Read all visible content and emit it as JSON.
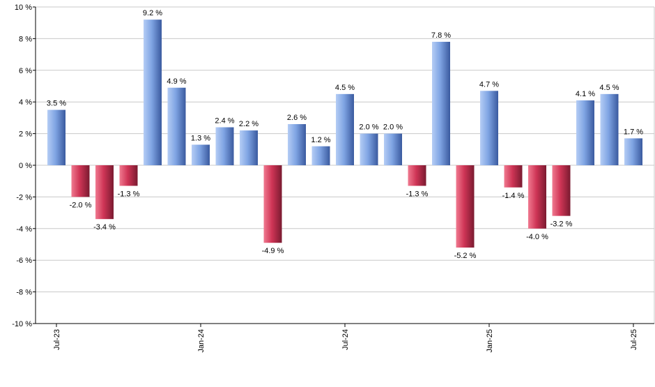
{
  "chart_data": {
    "type": "bar",
    "title": "",
    "xlabel": "",
    "ylabel": "",
    "categories": [
      "2023-07",
      "2023-08",
      "2023-09",
      "2023-10",
      "2023-11",
      "2023-12",
      "2024-01",
      "2024-02",
      "2024-03",
      "2024-04",
      "2024-05",
      "2024-06",
      "2024-07",
      "2024-08",
      "2024-09",
      "2024-10",
      "2024-11",
      "2024-12",
      "2025-01",
      "2025-02",
      "2025-03",
      "2025-04",
      "2025-05",
      "2025-06",
      "2025-07"
    ],
    "values": [
      3.5,
      -2.0,
      -3.4,
      -1.3,
      9.2,
      4.9,
      1.3,
      2.4,
      2.2,
      -4.9,
      2.6,
      1.2,
      4.5,
      2.0,
      2.0,
      -1.3,
      7.8,
      -5.2,
      4.7,
      -1.4,
      -4.0,
      -3.2,
      4.1,
      4.5,
      1.7
    ],
    "data_labels": [
      "3.5 %",
      "-2.0 %",
      "-3.4 %",
      "-1.3 %",
      "9.2 %",
      "4.9 %",
      "1.3 %",
      "2.4 %",
      "2.2 %",
      "-4.9 %",
      "2.6 %",
      "1.2 %",
      "4.5 %",
      "2.0 %",
      "2.0 %",
      "-1.3 %",
      "7.8 %",
      "-5.2 %",
      "4.7 %",
      "-1.4 %",
      "-4.0 %",
      "-3.2 %",
      "4.1 %",
      "4.5 %",
      "1.7 %"
    ],
    "ylim": [
      -10,
      10
    ],
    "y_ticks": [
      10,
      8,
      6,
      4,
      2,
      0,
      -2,
      -4,
      -6,
      -8,
      -10
    ],
    "y_tick_labels": [
      "10 %",
      "8 %",
      "6 %",
      "4 %",
      "2 %",
      "0 %",
      "-2 %",
      "-4 %",
      "-6 %",
      "-8 %",
      "-10 %"
    ],
    "x_ticks": [
      {
        "index": 0,
        "label": "Jul-23"
      },
      {
        "index": 6,
        "label": "Jan-24"
      },
      {
        "index": 12,
        "label": "Jul-24"
      },
      {
        "index": 18,
        "label": "Jan-25"
      },
      {
        "index": 24,
        "label": "Jul-25"
      }
    ],
    "grid": true,
    "legend": "none",
    "colors": {
      "positive_light": "#b5cdf5",
      "positive_mid": "#7fa4e3",
      "positive_dark": "#3a5a9f",
      "negative_light": "#f07a90",
      "negative_mid": "#cf3556",
      "negative_dark": "#7a1a30",
      "grid": "#c8c8c8",
      "axis": "#000000",
      "text": "#000000"
    }
  }
}
